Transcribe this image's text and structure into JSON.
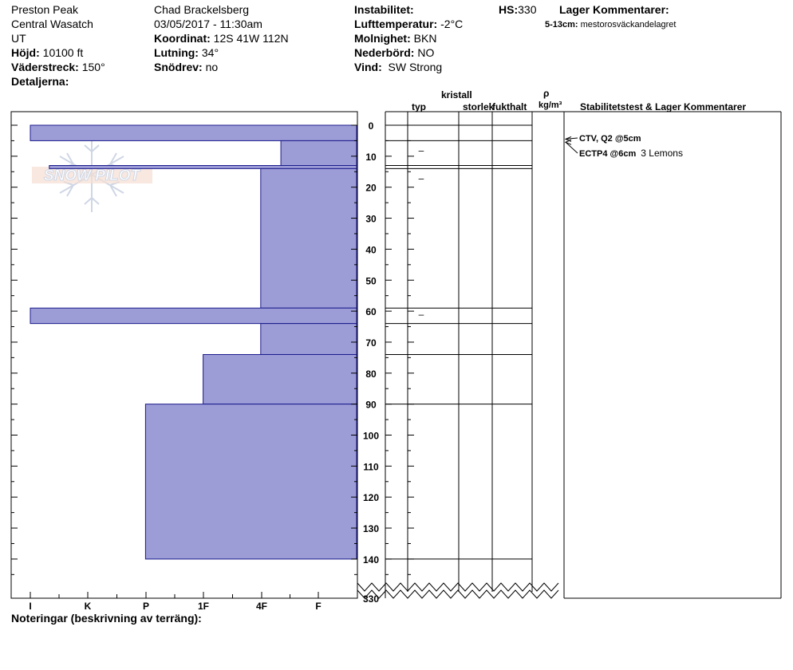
{
  "header": {
    "location": "Preston Peak",
    "range": "Central Wasatch",
    "state": "UT",
    "elevation_label": "Höjd:",
    "elevation_value": "10100 ft",
    "aspect_label": "Väderstreck:",
    "aspect_value": "150°",
    "details_label": "Detaljerna:",
    "observer": "Chad Brackelsberg",
    "datetime": "03/05/2017 - 11:30am",
    "coord_label": "Koordinat:",
    "coord_value": "12S 41W 112N",
    "slope_label": "Lutning:",
    "slope_value": "34°",
    "drift_label": "Snödrev:",
    "drift_value": "no",
    "instability_label": "Instabilitet:",
    "airtemp_label": "Lufttemperatur:",
    "airtemp_value": "-2°C",
    "sky_label": "Molnighet:",
    "sky_value": "BKN",
    "precip_label": "Nederbörd:",
    "precip_value": "NO",
    "wind_label": "Vind:",
    "wind_value": "SW Strong",
    "hs_label": "HS:",
    "hs_value": "330",
    "layer_comments_label": "Lager Kommentarer:",
    "layer_comment_depth": "5-13cm:",
    "layer_comment_text": "mestorosväckandelagret"
  },
  "columns": {
    "crystal": "kristall",
    "type": "typ",
    "size": "storlek",
    "moisture": "fukthalt",
    "rho": "ρ",
    "density_unit": "kg/m³",
    "stability": "Stabilitetstest & Lager Kommentarer"
  },
  "hardness_ticks": [
    "I",
    "K",
    "P",
    "1F",
    "4F",
    "F"
  ],
  "depth_ticks": [
    "0",
    "10",
    "20",
    "30",
    "40",
    "50",
    "60",
    "70",
    "80",
    "90",
    "100",
    "110",
    "120",
    "130",
    "140"
  ],
  "hs_bottom_label": "330",
  "notes_label": "Noteringar (beskrivning av terräng):",
  "watermark": "SNOW PILOT",
  "stability_tests": [
    {
      "test": "CTV, Q2 @5cm",
      "note": "",
      "depth_cm": 5
    },
    {
      "test": "ECTP4 @6cm",
      "note": "3 Lemons",
      "depth_cm": 6
    }
  ],
  "chart_data": {
    "type": "bar",
    "orientation": "horizontal",
    "title": "",
    "xlabel": "",
    "ylabel": "",
    "hardness_scale": [
      "I",
      "K",
      "P",
      "1F",
      "4F",
      "F"
    ],
    "hardness_value_scale_note": "F=0, 4F=1, 1F=2, P=3, K=4, I=5 (units of hand hardness)",
    "ylim": [
      0,
      140
    ],
    "layers": [
      {
        "top_cm": 0,
        "bottom_cm": 5,
        "hardness": 5,
        "label": "I",
        "crystal_type": ""
      },
      {
        "top_cm": 5,
        "bottom_cm": 13,
        "hardness": 0.65,
        "label": "F+",
        "crystal_type": "–"
      },
      {
        "top_cm": 13,
        "bottom_cm": 14,
        "hardness": 4.67,
        "label": "I-",
        "crystal_type": ""
      },
      {
        "top_cm": 14,
        "bottom_cm": 59,
        "hardness": 1,
        "label": "4F",
        "crystal_type": "–"
      },
      {
        "top_cm": 59,
        "bottom_cm": 64,
        "hardness": 5,
        "label": "I",
        "crystal_type": "–"
      },
      {
        "top_cm": 64,
        "bottom_cm": 74,
        "hardness": 1,
        "label": "4F",
        "crystal_type": ""
      },
      {
        "top_cm": 74,
        "bottom_cm": 90,
        "hardness": 2,
        "label": "1F",
        "crystal_type": ""
      },
      {
        "top_cm": 90,
        "bottom_cm": 140,
        "hardness": 3,
        "label": "P",
        "crystal_type": ""
      }
    ]
  },
  "colors": {
    "layer_fill": "#9c9cd7",
    "layer_stroke": "#1c1c8c",
    "watermark": "#c7cfe0"
  }
}
